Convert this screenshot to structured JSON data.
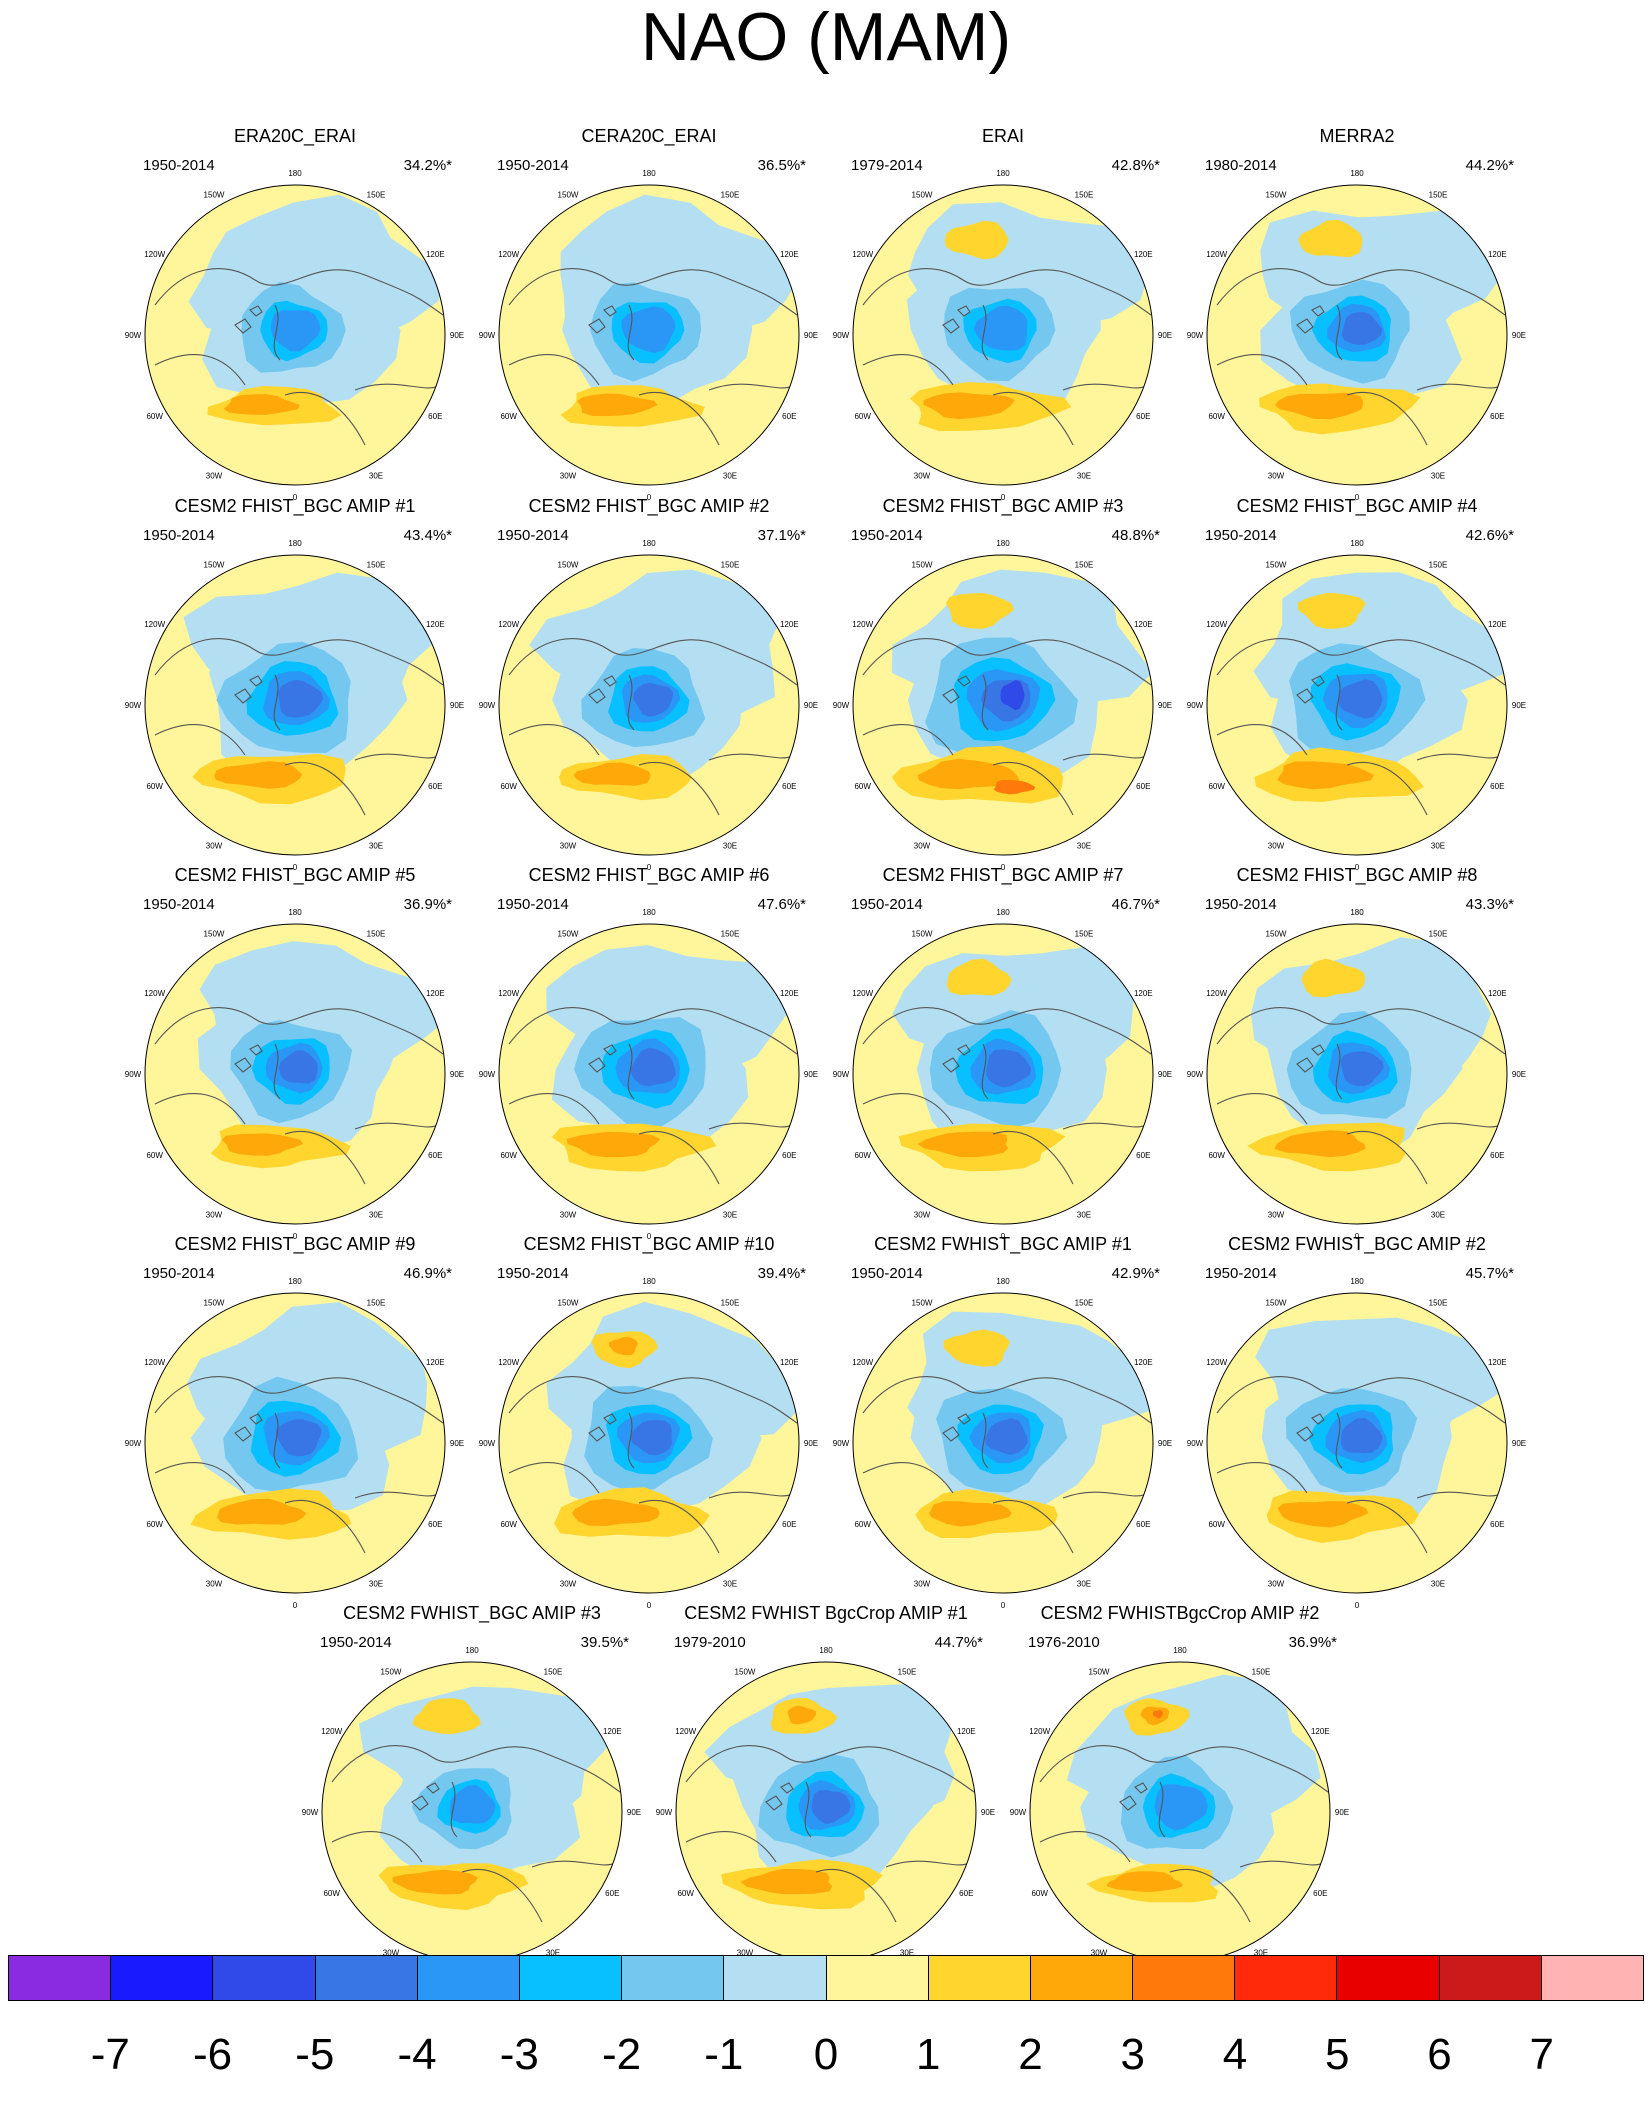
{
  "title": "NAO (MAM)",
  "longitude_labels": [
    "180",
    "150E",
    "120E",
    "90E",
    "60E",
    "30E",
    "0",
    "30W",
    "60W",
    "90W",
    "120W",
    "150W"
  ],
  "panels": [
    {
      "title": "ERA20C_ERAI",
      "period": "1950-2014",
      "percent": "34.2%*",
      "pos_strength": 0.65,
      "neg_strength": 0.65,
      "pac_pos": 0.0
    },
    {
      "title": "CERA20C_ERAI",
      "period": "1950-2014",
      "percent": "36.5%*",
      "pos_strength": 0.7,
      "neg_strength": 0.7,
      "pac_pos": 0.0
    },
    {
      "title": "ERAI",
      "period": "1979-2014",
      "percent": "42.8%*",
      "pos_strength": 0.8,
      "neg_strength": 0.7,
      "pac_pos": 0.2
    },
    {
      "title": "MERRA2",
      "period": "1980-2014",
      "percent": "44.2%*",
      "pos_strength": 0.8,
      "neg_strength": 0.75,
      "pac_pos": 0.25
    },
    {
      "title": "CESM2 FHIST_BGC AMIP #1",
      "period": "1950-2014",
      "percent": "43.4%*",
      "pos_strength": 0.8,
      "neg_strength": 0.85,
      "pac_pos": 0.0
    },
    {
      "title": "CESM2 FHIST_BGC AMIP #2",
      "period": "1950-2014",
      "percent": "37.1%*",
      "pos_strength": 0.7,
      "neg_strength": 0.75,
      "pac_pos": 0.0
    },
    {
      "title": "CESM2 FHIST_BGC AMIP #3",
      "period": "1950-2014",
      "percent": "48.8%*",
      "pos_strength": 0.9,
      "neg_strength": 0.95,
      "pac_pos": 0.3
    },
    {
      "title": "CESM2 FHIST_BGC AMIP #4",
      "period": "1950-2014",
      "percent": "42.6%*",
      "pos_strength": 0.85,
      "neg_strength": 0.85,
      "pac_pos": 0.3
    },
    {
      "title": "CESM2 FHIST_BGC AMIP #5",
      "period": "1950-2014",
      "percent": "36.9%*",
      "pos_strength": 0.7,
      "neg_strength": 0.75,
      "pac_pos": 0.0
    },
    {
      "title": "CESM2 FHIST_BGC AMIP #6",
      "period": "1950-2014",
      "percent": "47.6%*",
      "pos_strength": 0.8,
      "neg_strength": 0.85,
      "pac_pos": 0.0
    },
    {
      "title": "CESM2 FHIST_BGC AMIP #7",
      "period": "1950-2014",
      "percent": "46.7%*",
      "pos_strength": 0.8,
      "neg_strength": 0.85,
      "pac_pos": 0.25
    },
    {
      "title": "CESM2 FHIST_BGC AMIP #8",
      "period": "1950-2014",
      "percent": "43.3%*",
      "pos_strength": 0.8,
      "neg_strength": 0.8,
      "pac_pos": 0.3
    },
    {
      "title": "CESM2 FHIST_BGC AMIP #9",
      "period": "1950-2014",
      "percent": "46.9%*",
      "pos_strength": 0.8,
      "neg_strength": 0.85,
      "pac_pos": 0.0
    },
    {
      "title": "CESM2 FHIST_BGC AMIP #10",
      "period": "1950-2014",
      "percent": "39.4%*",
      "pos_strength": 0.8,
      "neg_strength": 0.8,
      "pac_pos": 0.6
    },
    {
      "title": "CESM2 FWHIST_BGC AMIP #1",
      "period": "1950-2014",
      "percent": "42.9%*",
      "pos_strength": 0.75,
      "neg_strength": 0.8,
      "pac_pos": 0.5
    },
    {
      "title": "CESM2 FWHIST_BGC AMIP #2",
      "period": "1950-2014",
      "percent": "45.7%*",
      "pos_strength": 0.8,
      "neg_strength": 0.8,
      "pac_pos": 0.0
    },
    {
      "title": "CESM2 FWHIST_BGC AMIP #3",
      "period": "1950-2014",
      "percent": "39.5%*",
      "pos_strength": 0.75,
      "neg_strength": 0.6,
      "pac_pos": 0.5
    },
    {
      "title": "CESM2 FWHIST BgcCrop AMIP #1",
      "period": "1979-2010",
      "percent": "44.7%*",
      "pos_strength": 0.8,
      "neg_strength": 0.75,
      "pac_pos": 0.6
    },
    {
      "title": "CESM2 FWHISTBgcCrop AMIP #2",
      "period": "1976-2010",
      "percent": "36.9%*",
      "pos_strength": 0.65,
      "neg_strength": 0.7,
      "pac_pos": 0.8
    }
  ],
  "colorbar": {
    "colors": [
      "#8a2be2",
      "#1a1aff",
      "#2f4ae8",
      "#3876e6",
      "#2a96f5",
      "#08c0ff",
      "#74c8f0",
      "#b4dff2",
      "#fff59a",
      "#ffd52e",
      "#ffa80a",
      "#ff7a0a",
      "#ff2a0a",
      "#e80000",
      "#cc1a1a",
      "#ffb3b3"
    ],
    "ticks": [
      "-7",
      "-6",
      "-5",
      "-4",
      "-3",
      "-2",
      "-1",
      "0",
      "1",
      "2",
      "3",
      "4",
      "5",
      "6",
      "7"
    ]
  }
}
